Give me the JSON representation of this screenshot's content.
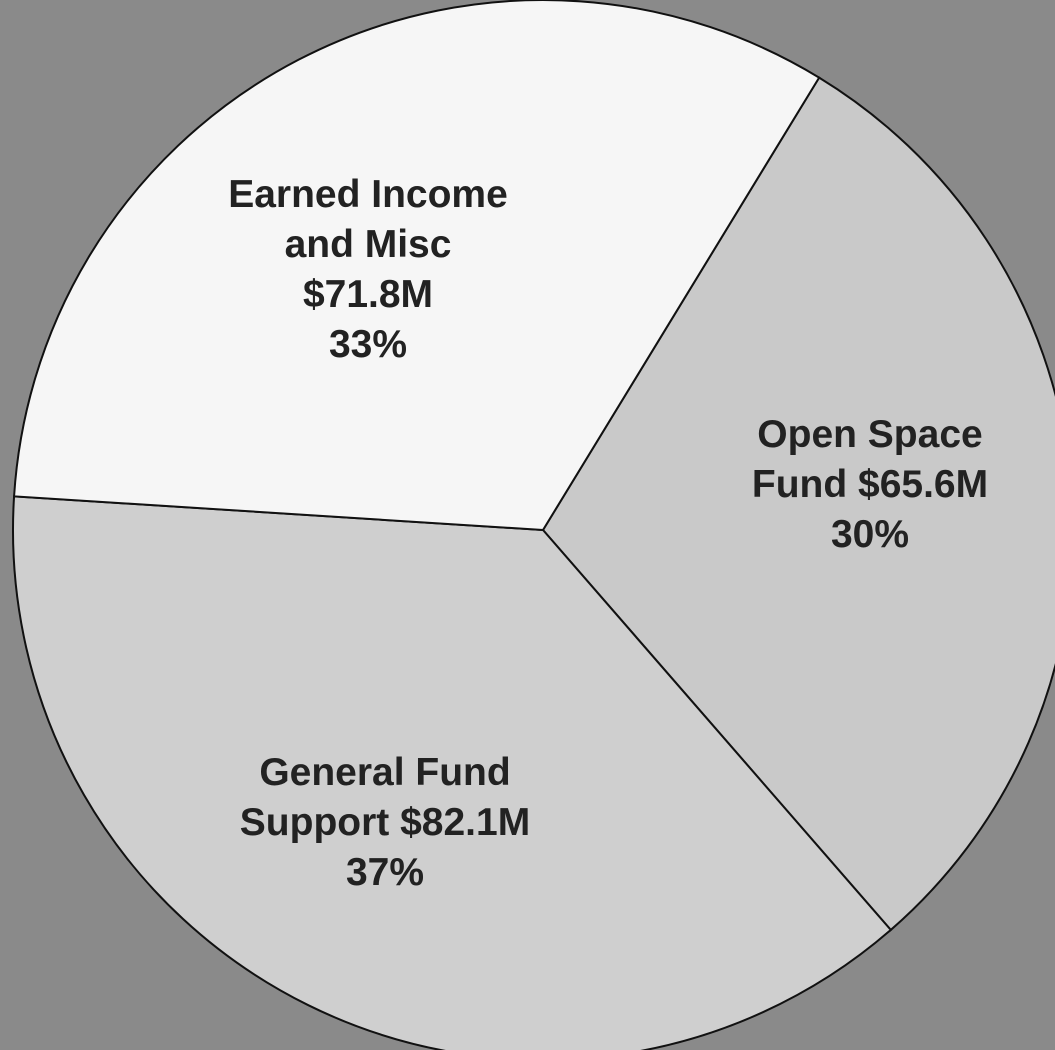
{
  "chart_data": {
    "type": "pie",
    "categories": [
      "Open Space Fund",
      "General Fund Support",
      "Earned Income and Misc"
    ],
    "values": [
      65600000,
      82100000,
      71800000
    ],
    "value_labels": [
      "$65.6M",
      "$82.1M",
      "$71.8M"
    ],
    "percents": [
      30,
      37,
      33
    ],
    "percent_labels": [
      "30%",
      "37%",
      "33%"
    ],
    "colors": [
      "#c9c9c9",
      "#cfcfcf",
      "#f6f6f6"
    ]
  }
}
